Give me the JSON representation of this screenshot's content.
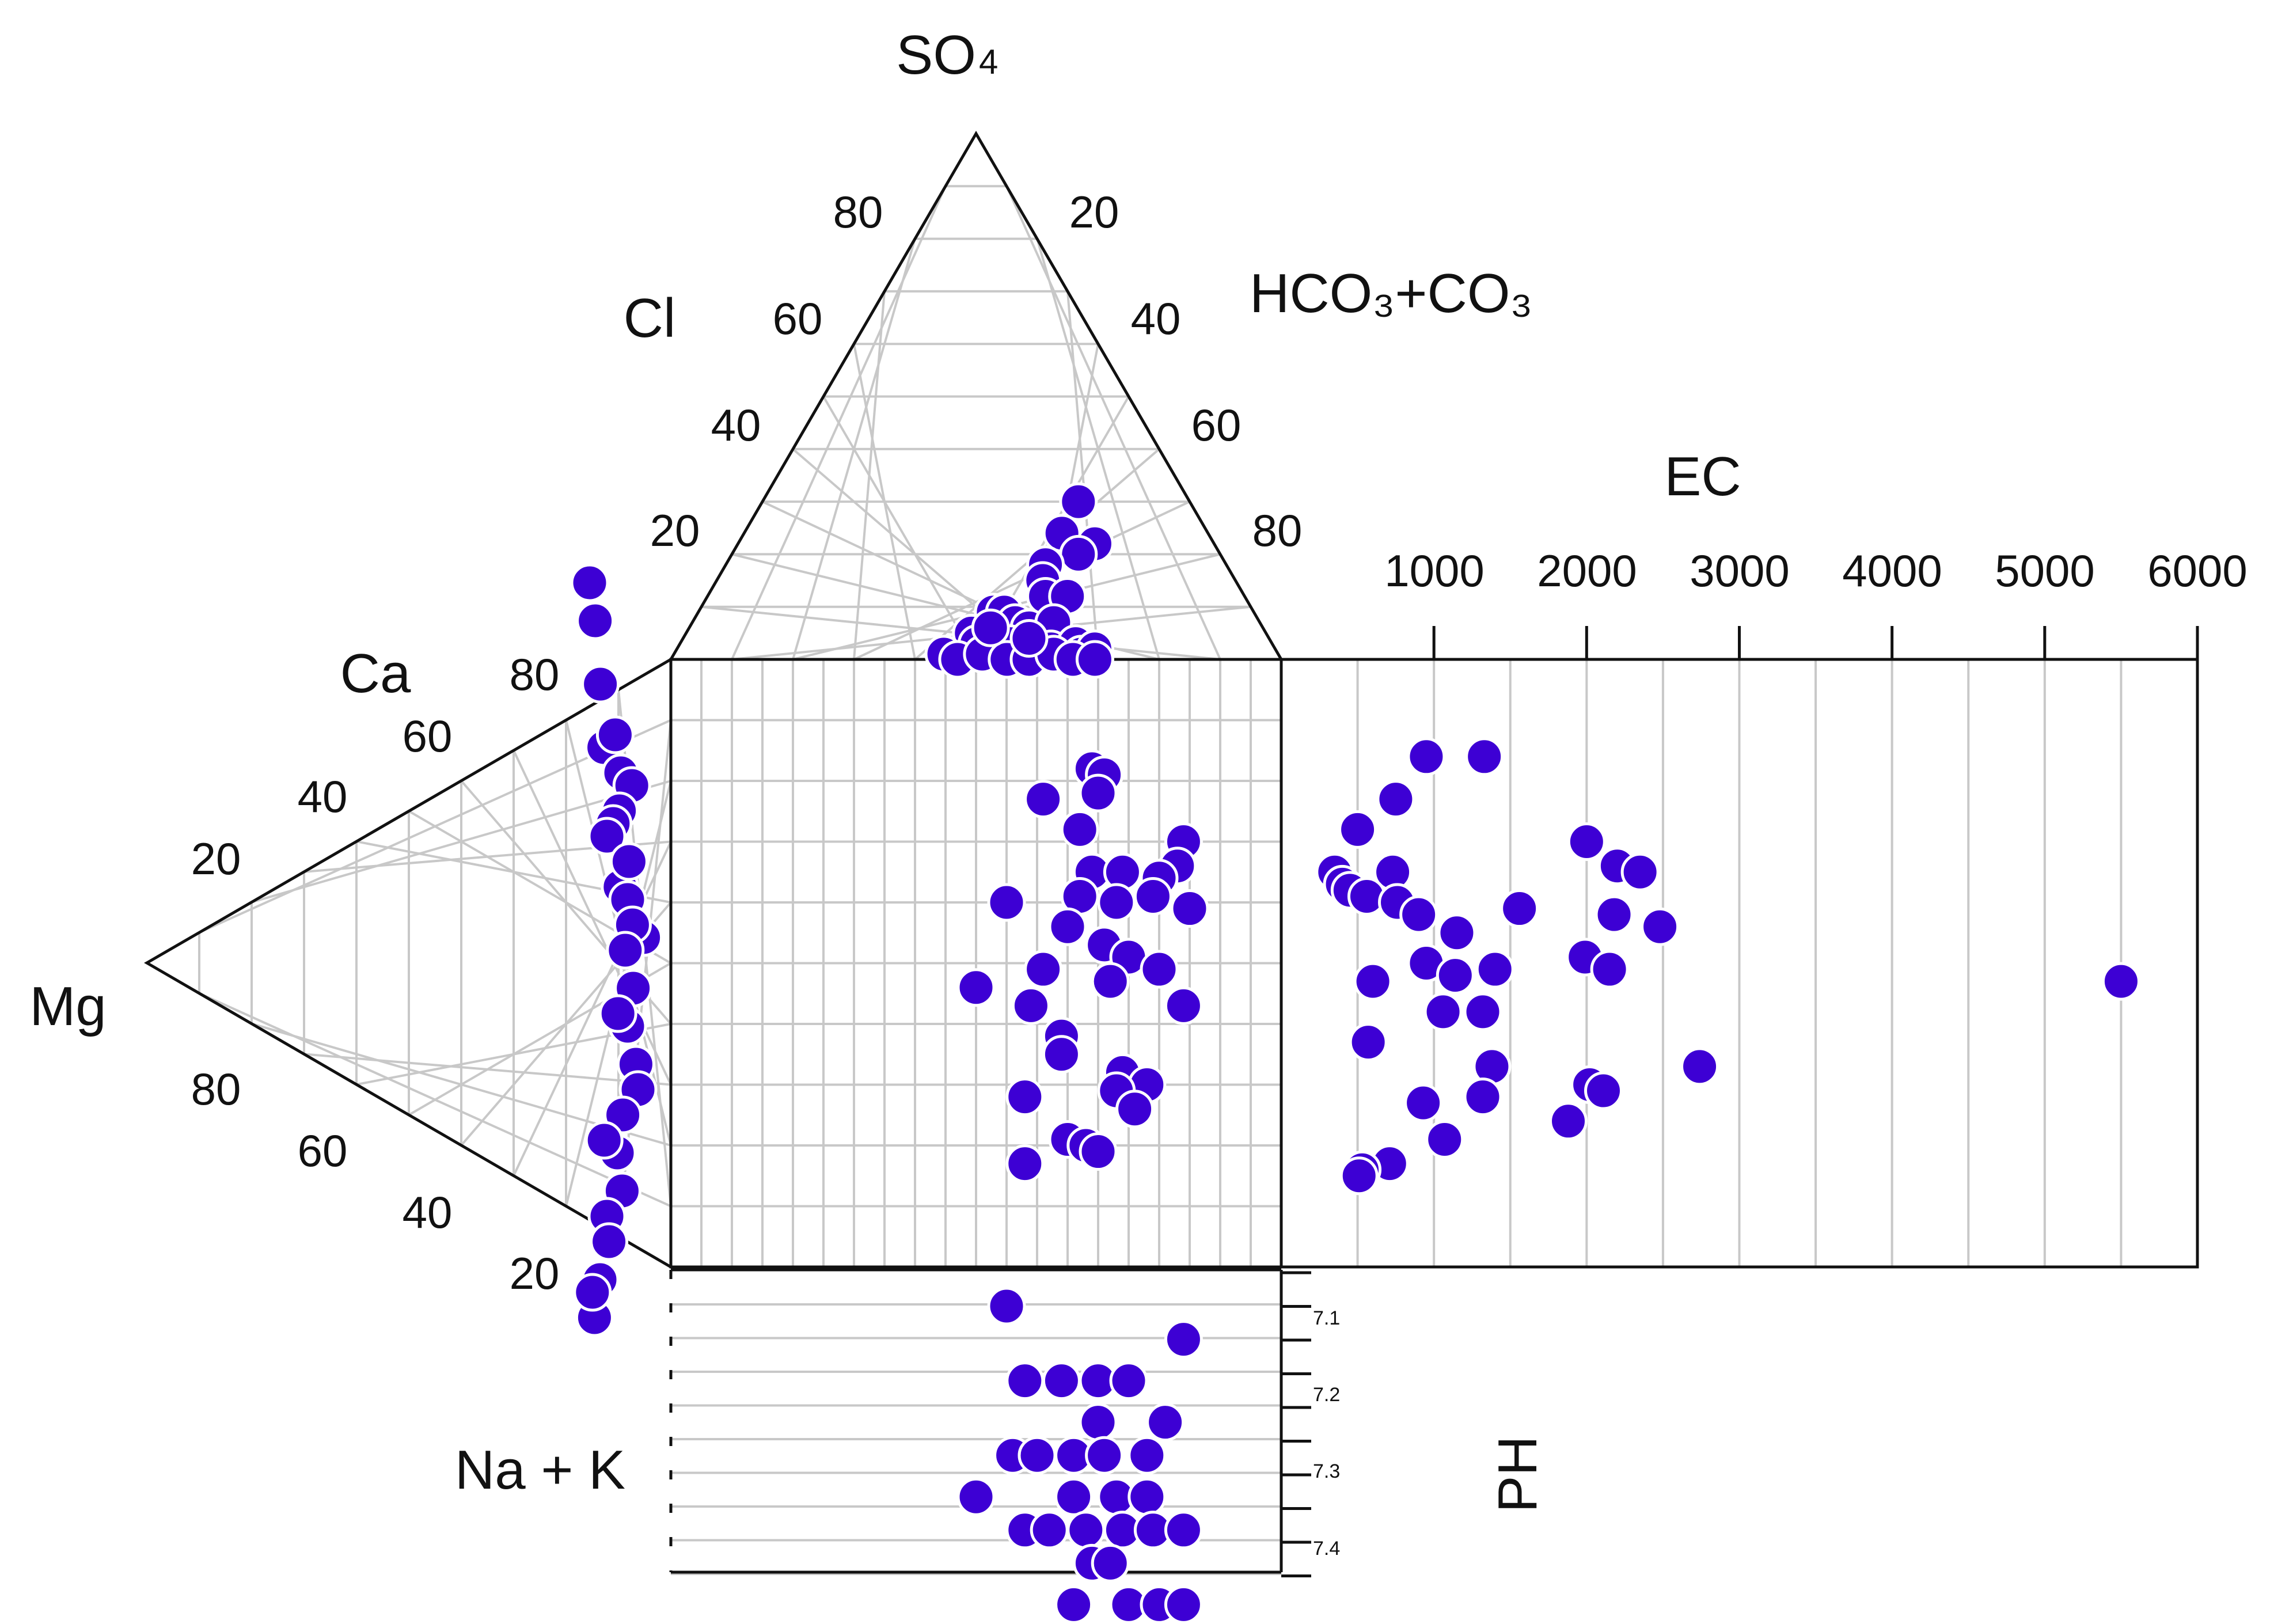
{
  "chart_data": {
    "type": "scatter",
    "title": "",
    "marker_color": "#3d00d4",
    "grid_color": "#c8c8c8",
    "axis_color": "#111111",
    "anion_triangle": {
      "apex_label": "SO",
      "apex_label_sub": "4",
      "left_label": "Cl",
      "right_label": "HCO₃+CO₃",
      "left_ticks": [
        "80",
        "60",
        "40",
        "20"
      ],
      "right_ticks": [
        "20",
        "40",
        "60",
        "80"
      ],
      "points": [
        {
          "cl": 55,
          "so4": 30
        },
        {
          "cl": 62,
          "so4": 22
        },
        {
          "cl": 55,
          "so4": 24
        },
        {
          "cl": 60,
          "so4": 20
        },
        {
          "cl": 55,
          "so4": 18
        },
        {
          "cl": 56,
          "so4": 15
        },
        {
          "cl": 58,
          "so4": 12
        },
        {
          "cl": 62,
          "so4": 12
        },
        {
          "cl": 50,
          "so4": 9
        },
        {
          "cl": 52,
          "so4": 9
        },
        {
          "cl": 55,
          "so4": 7
        },
        {
          "cl": 58,
          "so4": 6
        },
        {
          "cl": 62,
          "so4": 7
        },
        {
          "cl": 48,
          "so4": 5
        },
        {
          "cl": 50,
          "so4": 3
        },
        {
          "cl": 53,
          "so4": 4
        },
        {
          "cl": 56,
          "so4": 3
        },
        {
          "cl": 60,
          "so4": 2
        },
        {
          "cl": 64,
          "so4": 2
        },
        {
          "cl": 68,
          "so4": 3
        },
        {
          "cl": 70,
          "so4": 1
        },
        {
          "cl": 72,
          "so4": 2
        },
        {
          "cl": 45,
          "so4": 1
        },
        {
          "cl": 48,
          "so4": 0
        },
        {
          "cl": 52,
          "so4": 1
        },
        {
          "cl": 57,
          "so4": 0
        },
        {
          "cl": 61,
          "so4": 0
        },
        {
          "cl": 65,
          "so4": 1
        },
        {
          "cl": 69,
          "so4": 0
        },
        {
          "cl": 73,
          "so4": 0
        },
        {
          "cl": 51,
          "so4": 6
        },
        {
          "cl": 59,
          "so4": 4
        }
      ]
    },
    "cation_triangle": {
      "apex_label": "Mg",
      "top_label": "Ca",
      "bottom_label": "Na + K",
      "upper_ticks": [
        "80",
        "60",
        "40",
        "20"
      ],
      "lower_ticks": [
        "80",
        "60",
        "40",
        "20"
      ],
      "points": [
        {
          "ca": 30,
          "mg": 0
        },
        {
          "ca": 27,
          "mg": 2
        },
        {
          "ca": 22,
          "mg": 3
        },
        {
          "ca": 17,
          "mg": 3
        },
        {
          "ca": 15,
          "mg": 12
        },
        {
          "ca": 14,
          "mg": 18
        },
        {
          "ca": 18,
          "mg": 10
        },
        {
          "ca": 12,
          "mg": 10
        },
        {
          "ca": 11,
          "mg": 6
        },
        {
          "ca": 10,
          "mg": 2
        },
        {
          "ca": 6,
          "mg": 8
        },
        {
          "ca": 5,
          "mg": 12
        },
        {
          "ca": 2,
          "mg": 20
        },
        {
          "ca": 3,
          "mg": 14
        },
        {
          "ca": 1,
          "mg": 9
        },
        {
          "ca": -2,
          "mg": 14
        },
        {
          "ca": -5,
          "mg": 12
        },
        {
          "ca": -8,
          "mg": 18
        },
        {
          "ca": -10,
          "mg": 20
        },
        {
          "ca": -12,
          "mg": 12
        },
        {
          "ca": -15,
          "mg": 10
        },
        {
          "ca": -18,
          "mg": 14
        },
        {
          "ca": -20,
          "mg": 6
        },
        {
          "ca": -22,
          "mg": 8
        },
        {
          "ca": -25,
          "mg": 4
        },
        {
          "ca": -28,
          "mg": 2
        },
        {
          "ca": -26,
          "mg": 0
        },
        {
          "ca": -4,
          "mg": 6
        },
        {
          "ca": 8,
          "mg": 14
        },
        {
          "ca": -14,
          "mg": 2
        }
      ]
    },
    "ec_panel": {
      "title": "EC",
      "xlim": [
        0,
        6000
      ],
      "ticks": [
        "1000",
        "2000",
        "3000",
        "4000",
        "5000",
        "6000"
      ],
      "points": [
        {
          "ec": 950,
          "row": 0.16
        },
        {
          "ec": 1330,
          "row": 0.16
        },
        {
          "ec": 750,
          "row": 0.23
        },
        {
          "ec": 500,
          "row": 0.28
        },
        {
          "ec": 2000,
          "row": 0.3
        },
        {
          "ec": 2200,
          "row": 0.34
        },
        {
          "ec": 2350,
          "row": 0.35
        },
        {
          "ec": 350,
          "row": 0.35
        },
        {
          "ec": 730,
          "row": 0.35
        },
        {
          "ec": 400,
          "row": 0.37
        },
        {
          "ec": 450,
          "row": 0.38
        },
        {
          "ec": 560,
          "row": 0.39
        },
        {
          "ec": 760,
          "row": 0.4
        },
        {
          "ec": 900,
          "row": 0.42
        },
        {
          "ec": 1560,
          "row": 0.41
        },
        {
          "ec": 2180,
          "row": 0.42
        },
        {
          "ec": 2480,
          "row": 0.44
        },
        {
          "ec": 1150,
          "row": 0.45
        },
        {
          "ec": 1990,
          "row": 0.49
        },
        {
          "ec": 950,
          "row": 0.5
        },
        {
          "ec": 1400,
          "row": 0.51
        },
        {
          "ec": 2150,
          "row": 0.51
        },
        {
          "ec": 1140,
          "row": 0.52
        },
        {
          "ec": 600,
          "row": 0.53
        },
        {
          "ec": 5500,
          "row": 0.53
        },
        {
          "ec": 1060,
          "row": 0.58
        },
        {
          "ec": 1320,
          "row": 0.58
        },
        {
          "ec": 570,
          "row": 0.63
        },
        {
          "ec": 2740,
          "row": 0.67
        },
        {
          "ec": 1380,
          "row": 0.67
        },
        {
          "ec": 2020,
          "row": 0.7
        },
        {
          "ec": 2110,
          "row": 0.71
        },
        {
          "ec": 1320,
          "row": 0.72
        },
        {
          "ec": 930,
          "row": 0.73
        },
        {
          "ec": 1880,
          "row": 0.76
        },
        {
          "ec": 1070,
          "row": 0.79
        },
        {
          "ec": 710,
          "row": 0.83
        },
        {
          "ec": 530,
          "row": 0.84
        },
        {
          "ec": 510,
          "row": 0.85
        }
      ]
    },
    "ph_panel": {
      "title": "PH",
      "ylim": [
        7.05,
        7.45
      ],
      "ticks": [
        "7.1",
        "7.2",
        "7.3",
        "7.4"
      ],
      "points": [
        {
          "col": 0.55,
          "ph": 7.1
        },
        {
          "col": 0.84,
          "ph": 7.14
        },
        {
          "col": 0.58,
          "ph": 7.19
        },
        {
          "col": 0.64,
          "ph": 7.19
        },
        {
          "col": 0.7,
          "ph": 7.19
        },
        {
          "col": 0.75,
          "ph": 7.19
        },
        {
          "col": 0.81,
          "ph": 7.24
        },
        {
          "col": 0.7,
          "ph": 7.24
        },
        {
          "col": 0.56,
          "ph": 7.28
        },
        {
          "col": 0.6,
          "ph": 7.28
        },
        {
          "col": 0.66,
          "ph": 7.28
        },
        {
          "col": 0.71,
          "ph": 7.28
        },
        {
          "col": 0.78,
          "ph": 7.28
        },
        {
          "col": 0.5,
          "ph": 7.33
        },
        {
          "col": 0.66,
          "ph": 7.33
        },
        {
          "col": 0.73,
          "ph": 7.33
        },
        {
          "col": 0.78,
          "ph": 7.33
        },
        {
          "col": 0.58,
          "ph": 7.37
        },
        {
          "col": 0.62,
          "ph": 7.37
        },
        {
          "col": 0.68,
          "ph": 7.37
        },
        {
          "col": 0.74,
          "ph": 7.37
        },
        {
          "col": 0.79,
          "ph": 7.37
        },
        {
          "col": 0.84,
          "ph": 7.37
        },
        {
          "col": 0.69,
          "ph": 7.41
        },
        {
          "col": 0.72,
          "ph": 7.41
        },
        {
          "col": 0.66,
          "ph": 7.46
        },
        {
          "col": 0.75,
          "ph": 7.46
        },
        {
          "col": 0.8,
          "ph": 7.46
        },
        {
          "col": 0.84,
          "ph": 7.46
        }
      ]
    },
    "diamond_points": [
      {
        "u": 0.69,
        "v": 0.18
      },
      {
        "u": 0.71,
        "v": 0.19
      },
      {
        "u": 0.7,
        "v": 0.22
      },
      {
        "u": 0.61,
        "v": 0.23
      },
      {
        "u": 0.67,
        "v": 0.28
      },
      {
        "u": 0.84,
        "v": 0.3
      },
      {
        "u": 0.83,
        "v": 0.34
      },
      {
        "u": 0.69,
        "v": 0.35
      },
      {
        "u": 0.74,
        "v": 0.35
      },
      {
        "u": 0.8,
        "v": 0.36
      },
      {
        "u": 0.67,
        "v": 0.39
      },
      {
        "u": 0.73,
        "v": 0.4
      },
      {
        "u": 0.79,
        "v": 0.39
      },
      {
        "u": 0.55,
        "v": 0.4
      },
      {
        "u": 0.85,
        "v": 0.41
      },
      {
        "u": 0.65,
        "v": 0.44
      },
      {
        "u": 0.71,
        "v": 0.47
      },
      {
        "u": 0.75,
        "v": 0.49
      },
      {
        "u": 0.61,
        "v": 0.51
      },
      {
        "u": 0.72,
        "v": 0.53
      },
      {
        "u": 0.5,
        "v": 0.54
      },
      {
        "u": 0.8,
        "v": 0.51
      },
      {
        "u": 0.84,
        "v": 0.57
      },
      {
        "u": 0.59,
        "v": 0.57
      },
      {
        "u": 0.64,
        "v": 0.62
      },
      {
        "u": 0.64,
        "v": 0.65
      },
      {
        "u": 0.74,
        "v": 0.68
      },
      {
        "u": 0.78,
        "v": 0.7
      },
      {
        "u": 0.73,
        "v": 0.71
      },
      {
        "u": 0.58,
        "v": 0.72
      },
      {
        "u": 0.76,
        "v": 0.74
      },
      {
        "u": 0.65,
        "v": 0.79
      },
      {
        "u": 0.68,
        "v": 0.8
      },
      {
        "u": 0.7,
        "v": 0.81
      },
      {
        "u": 0.58,
        "v": 0.83
      }
    ]
  }
}
